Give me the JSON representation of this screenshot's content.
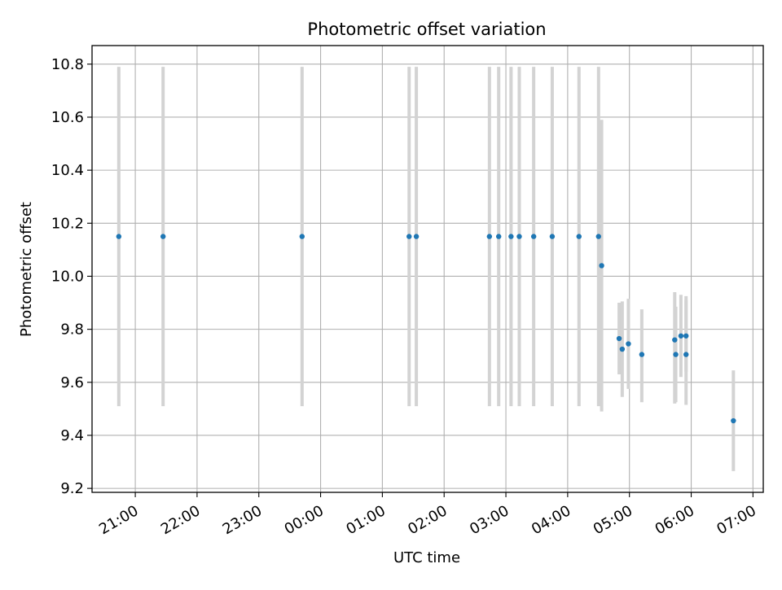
{
  "chart_data": {
    "type": "scatter",
    "title": "Photometric offset variation",
    "xlabel": "UTC time",
    "ylabel": "Photometric offset",
    "x_axis_type": "time",
    "xlim": [
      "20:18",
      "07:10"
    ],
    "ylim": [
      9.185,
      10.87
    ],
    "grid": true,
    "xticks": [
      "21:00",
      "22:00",
      "23:00",
      "00:00",
      "01:00",
      "02:00",
      "03:00",
      "04:00",
      "05:00",
      "06:00",
      "07:00"
    ],
    "yticks": [
      "9.2",
      "9.4",
      "9.6",
      "9.8",
      "10.0",
      "10.2",
      "10.4",
      "10.6",
      "10.8"
    ],
    "colors": {
      "point": "#1f77b4",
      "error_bar": "#d3d3d3",
      "grid": "#b0b0b0"
    },
    "series": [
      {
        "points": [
          {
            "x": "20:44",
            "y": 10.15,
            "ylow": 9.51,
            "yhigh": 10.79
          },
          {
            "x": "21:27",
            "y": 10.15,
            "ylow": 9.51,
            "yhigh": 10.79
          },
          {
            "x": "23:42",
            "y": 10.15,
            "ylow": 9.51,
            "yhigh": 10.79
          },
          {
            "x": "01:26",
            "y": 10.15,
            "ylow": 9.51,
            "yhigh": 10.79
          },
          {
            "x": "01:33",
            "y": 10.15,
            "ylow": 9.51,
            "yhigh": 10.79
          },
          {
            "x": "02:44",
            "y": 10.15,
            "ylow": 9.51,
            "yhigh": 10.79
          },
          {
            "x": "02:53",
            "y": 10.15,
            "ylow": 9.51,
            "yhigh": 10.79
          },
          {
            "x": "03:05",
            "y": 10.15,
            "ylow": 9.51,
            "yhigh": 10.79
          },
          {
            "x": "03:13",
            "y": 10.15,
            "ylow": 9.51,
            "yhigh": 10.79
          },
          {
            "x": "03:27",
            "y": 10.15,
            "ylow": 9.51,
            "yhigh": 10.79
          },
          {
            "x": "03:45",
            "y": 10.15,
            "ylow": 9.51,
            "yhigh": 10.79
          },
          {
            "x": "04:11",
            "y": 10.15,
            "ylow": 9.51,
            "yhigh": 10.79
          },
          {
            "x": "04:30",
            "y": 10.15,
            "ylow": 9.51,
            "yhigh": 10.79
          },
          {
            "x": "04:33",
            "y": 10.04,
            "ylow": 9.49,
            "yhigh": 10.59
          },
          {
            "x": "04:50",
            "y": 9.765,
            "ylow": 9.63,
            "yhigh": 9.9
          },
          {
            "x": "04:53",
            "y": 9.725,
            "ylow": 9.545,
            "yhigh": 9.905
          },
          {
            "x": "04:59",
            "y": 9.745,
            "ylow": 9.575,
            "yhigh": 9.915
          },
          {
            "x": "05:12",
            "y": 9.705,
            "ylow": 9.525,
            "yhigh": 9.875
          },
          {
            "x": "05:44",
            "y": 9.76,
            "ylow": 9.52,
            "yhigh": 9.94
          },
          {
            "x": "05:45",
            "y": 9.705,
            "ylow": 9.525,
            "yhigh": 9.885
          },
          {
            "x": "05:50",
            "y": 9.775,
            "ylow": 9.62,
            "yhigh": 9.93
          },
          {
            "x": "05:55",
            "y": 9.775,
            "ylow": 9.64,
            "yhigh": 9.91
          },
          {
            "x": "05:55",
            "y": 9.705,
            "ylow": 9.515,
            "yhigh": 9.925
          },
          {
            "x": "06:41",
            "y": 9.455,
            "ylow": 9.265,
            "yhigh": 9.645
          }
        ]
      }
    ]
  }
}
